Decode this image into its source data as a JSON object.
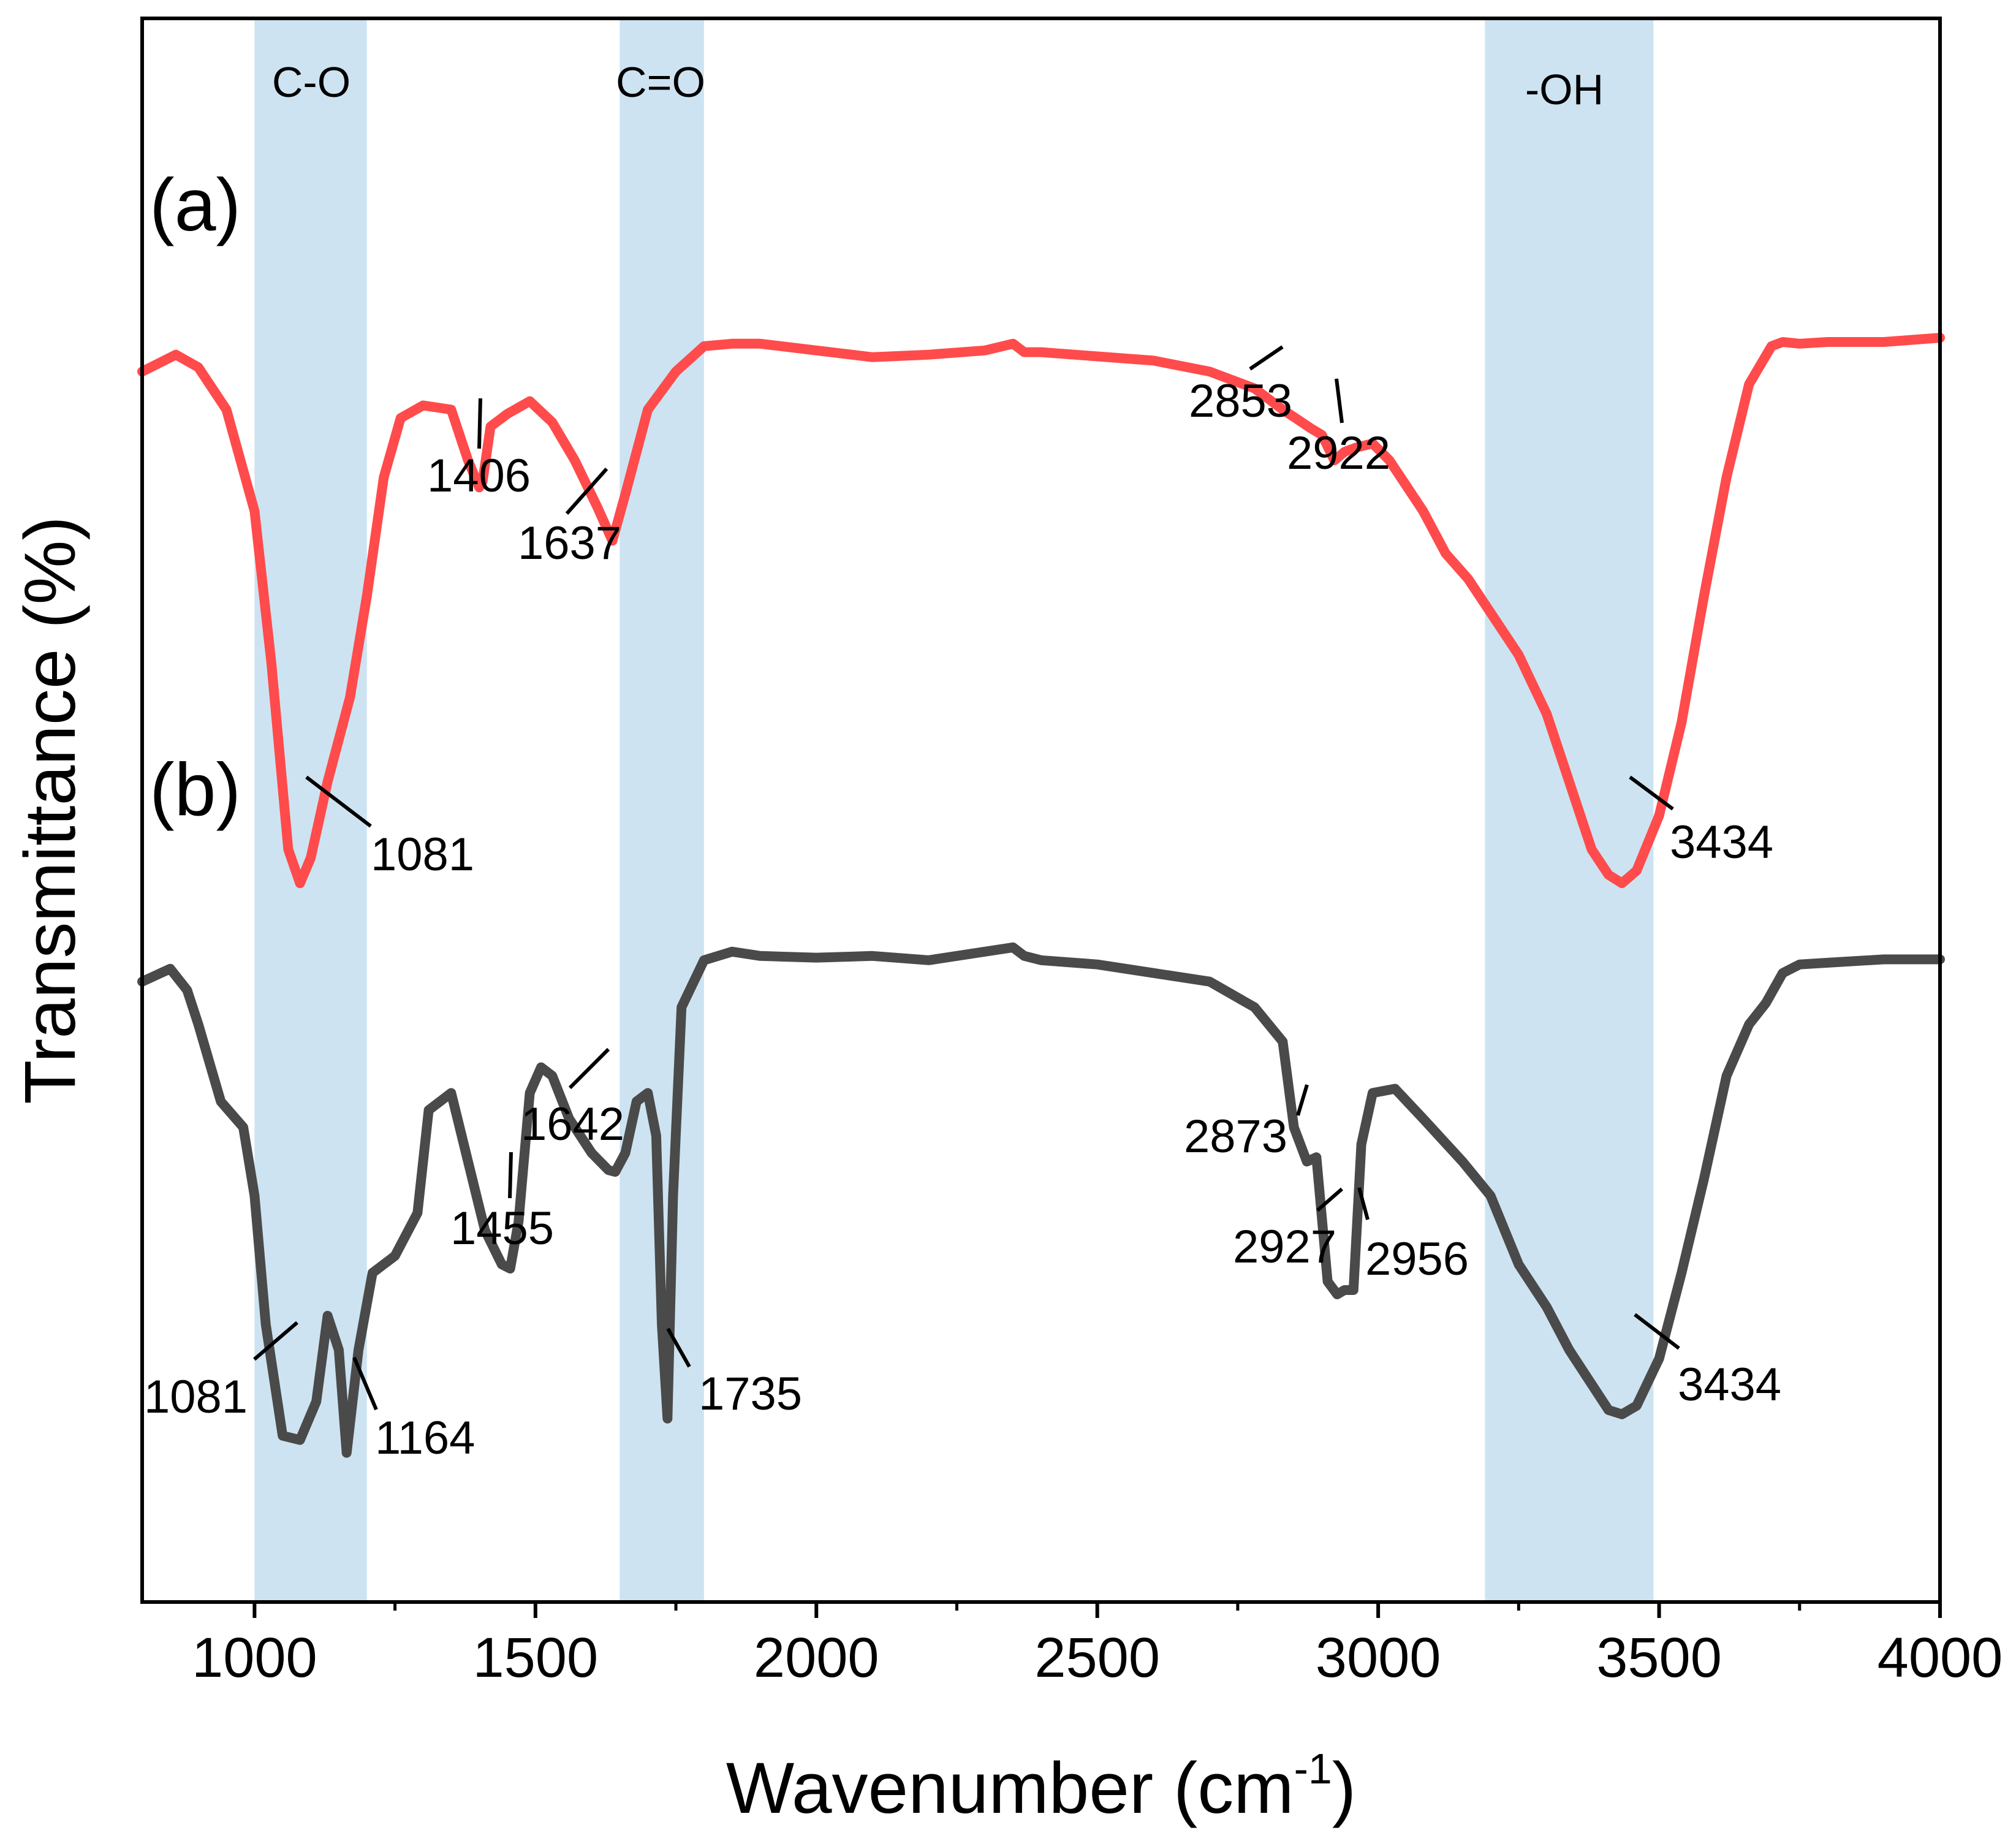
{
  "chart_data": {
    "type": "line",
    "title": "",
    "xlabel": "Wavenumber (cm",
    "xlabel_sup": "-1",
    "xlabel_close": ")",
    "ylabel": "Transmittance (%)",
    "xlim": [
      800,
      4000
    ],
    "ylim": [
      0,
      100
    ],
    "x_ticks": [
      1000,
      1500,
      2000,
      2500,
      3000,
      3500,
      4000
    ],
    "x_tick_labels": [
      "1000",
      "1500",
      "2000",
      "2500",
      "3000",
      "3500",
      "4000"
    ],
    "grid": false,
    "bands": [
      {
        "label": "C-O",
        "from": 1000,
        "to": 1200,
        "color": "#cde3f1"
      },
      {
        "label": "C=O",
        "from": 1650,
        "to": 1800,
        "color": "#cde3f1"
      },
      {
        "label": "-OH",
        "from": 3190,
        "to": 3490,
        "color": "#cde3f1"
      }
    ],
    "series": [
      {
        "name": "(a)",
        "color": "#ff4b4b",
        "x": [
          800,
          860,
          900,
          950,
          1000,
          1030,
          1060,
          1081,
          1100,
          1130,
          1170,
          1200,
          1230,
          1260,
          1300,
          1350,
          1380,
          1400,
          1406,
          1420,
          1450,
          1490,
          1530,
          1570,
          1610,
          1637,
          1660,
          1700,
          1750,
          1800,
          1850,
          1900,
          2000,
          2100,
          2200,
          2300,
          2350,
          2370,
          2400,
          2500,
          2600,
          2700,
          2780,
          2830,
          2853,
          2880,
          2900,
          2922,
          2940,
          2960,
          2990,
          3020,
          3050,
          3080,
          3120,
          3160,
          3200,
          3250,
          3300,
          3340,
          3380,
          3410,
          3434,
          3460,
          3500,
          3540,
          3580,
          3620,
          3660,
          3700,
          3720,
          3750,
          3800,
          3900,
          4000
        ],
        "values": [
          86.5,
          88.5,
          87,
          82,
          70,
          52,
          30,
          26,
          29,
          38,
          48,
          60,
          74,
          81,
          82.5,
          82,
          76,
          72.8,
          73.5,
          80,
          81.5,
          83,
          80.5,
          76,
          70.5,
          66.5,
          72,
          82,
          86.5,
          89.5,
          89.8,
          89.8,
          89,
          88.2,
          88.5,
          89,
          89.8,
          88.8,
          88.8,
          88.3,
          87.8,
          86.5,
          84.5,
          82,
          81,
          79.8,
          79,
          76,
          77,
          77.5,
          78,
          76,
          73,
          70,
          65,
          62,
          58,
          53,
          46,
          38,
          30,
          27,
          26,
          27.5,
          34,
          45,
          60,
          74,
          85,
          89.5,
          90,
          89.8,
          90,
          90,
          90.5
        ]
      },
      {
        "name": "(b)",
        "color": "#4a4a4a",
        "x": [
          800,
          850,
          880,
          900,
          940,
          980,
          1000,
          1020,
          1050,
          1081,
          1110,
          1130,
          1150,
          1164,
          1185,
          1210,
          1250,
          1290,
          1310,
          1350,
          1380,
          1410,
          1440,
          1455,
          1470,
          1490,
          1510,
          1530,
          1560,
          1600,
          1630,
          1642,
          1660,
          1680,
          1700,
          1715,
          1725,
          1735,
          1745,
          1760,
          1800,
          1850,
          1900,
          2000,
          2100,
          2200,
          2300,
          2350,
          2370,
          2400,
          2500,
          2600,
          2700,
          2780,
          2830,
          2850,
          2873,
          2890,
          2910,
          2927,
          2940,
          2956,
          2970,
          2990,
          3030,
          3080,
          3150,
          3200,
          3250,
          3300,
          3340,
          3380,
          3410,
          3434,
          3460,
          3500,
          3540,
          3580,
          3620,
          3660,
          3690,
          3720,
          3750,
          3800,
          3900,
          4000
        ],
        "values": [
          85,
          86.5,
          84,
          80,
          71,
          68,
          60,
          45,
          32,
          31.5,
          36,
          46,
          42,
          30,
          42,
          51,
          53,
          58,
          70,
          72,
          64,
          56,
          52,
          51.5,
          57,
          72,
          75,
          74,
          69,
          65,
          63,
          62.8,
          65,
          71,
          72,
          67,
          45,
          34,
          60,
          82,
          87.5,
          88.5,
          88,
          87.8,
          88,
          87.5,
          88.5,
          89,
          88,
          87.5,
          87,
          86,
          85,
          82,
          78,
          68,
          64,
          64.5,
          50,
          48.5,
          49,
          49,
          66,
          72,
          72.5,
          69,
          64,
          60,
          52,
          47,
          42,
          38,
          35,
          34.5,
          35.5,
          41,
          51,
          62,
          74,
          80,
          82.5,
          86,
          87,
          87.2,
          87.6,
          87.6
        ]
      }
    ],
    "panel_labels": [
      "(a)",
      "(b)"
    ],
    "annotations": [
      {
        "text": "1081",
        "series": "(a)"
      },
      {
        "text": "1406",
        "series": "(a)"
      },
      {
        "text": "1637",
        "series": "(a)"
      },
      {
        "text": "2853",
        "series": "(a)"
      },
      {
        "text": "2922",
        "series": "(a)"
      },
      {
        "text": "3434",
        "series": "(a)"
      },
      {
        "text": "1081",
        "series": "(b)"
      },
      {
        "text": "1164",
        "series": "(b)"
      },
      {
        "text": "1455",
        "series": "(b)"
      },
      {
        "text": "1642",
        "series": "(b)"
      },
      {
        "text": "1735",
        "series": "(b)"
      },
      {
        "text": "2873",
        "series": "(b)"
      },
      {
        "text": "2927",
        "series": "(b)"
      },
      {
        "text": "2956",
        "series": "(b)"
      },
      {
        "text": "3434",
        "series": "(b)"
      }
    ]
  }
}
